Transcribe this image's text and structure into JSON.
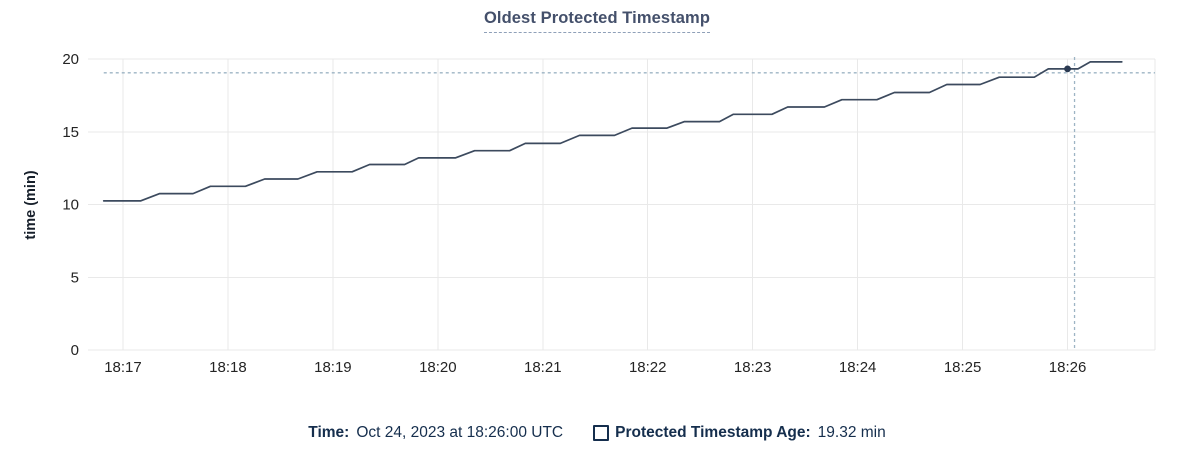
{
  "title": "Oldest Protected Timestamp",
  "y_axis_label": "time (min)",
  "tooltip": {
    "time_label": "Time:",
    "time_value": "Oct 24, 2023 at 18:26:00 UTC",
    "series_label": "Protected Timestamp Age:",
    "series_value": "19.32 min"
  },
  "colors": {
    "line": "#3c4a5e",
    "dot": "#2b3a52",
    "crosshair": "#9db4c4",
    "grid": "#e9e9e9",
    "title": "#44506b",
    "title_underline": "#8fa0b8",
    "tick_text": "#242424",
    "legend_text": "#152e4d"
  },
  "chart_data": {
    "type": "line",
    "title": "Oldest Protected Timestamp",
    "xlabel": "",
    "ylabel": "time (min)",
    "ylim": [
      0,
      20
    ],
    "y_ticks": [
      0,
      5,
      10,
      15,
      20
    ],
    "grid": true,
    "legend_position": "bottom",
    "x_domain_seconds": [
      -20,
      590
    ],
    "x_ticks": [
      {
        "label": "18:17",
        "t": 0
      },
      {
        "label": "18:18",
        "t": 60
      },
      {
        "label": "18:19",
        "t": 120
      },
      {
        "label": "18:20",
        "t": 180
      },
      {
        "label": "18:21",
        "t": 240
      },
      {
        "label": "18:22",
        "t": 300
      },
      {
        "label": "18:23",
        "t": 360
      },
      {
        "label": "18:24",
        "t": 420
      },
      {
        "label": "18:25",
        "t": 480
      },
      {
        "label": "18:26",
        "t": 540
      }
    ],
    "series": [
      {
        "name": "Protected Timestamp Age",
        "unit": "min",
        "points": [
          [
            -11,
            10.25
          ],
          [
            10,
            10.25
          ],
          [
            21,
            10.75
          ],
          [
            40,
            10.75
          ],
          [
            50,
            11.25
          ],
          [
            70,
            11.25
          ],
          [
            81,
            11.75
          ],
          [
            100,
            11.75
          ],
          [
            111,
            12.25
          ],
          [
            131,
            12.25
          ],
          [
            141,
            12.75
          ],
          [
            161,
            12.75
          ],
          [
            169,
            13.2
          ],
          [
            190,
            13.2
          ],
          [
            201,
            13.7
          ],
          [
            221,
            13.7
          ],
          [
            230,
            14.2
          ],
          [
            250,
            14.2
          ],
          [
            261,
            14.75
          ],
          [
            281,
            14.75
          ],
          [
            291,
            15.25
          ],
          [
            311,
            15.25
          ],
          [
            321,
            15.7
          ],
          [
            341,
            15.7
          ],
          [
            349,
            16.2
          ],
          [
            371,
            16.2
          ],
          [
            380,
            16.7
          ],
          [
            401,
            16.7
          ],
          [
            411,
            17.2
          ],
          [
            431,
            17.2
          ],
          [
            441,
            17.7
          ],
          [
            461,
            17.7
          ],
          [
            471,
            18.25
          ],
          [
            490,
            18.25
          ],
          [
            501,
            18.75
          ],
          [
            521,
            18.75
          ],
          [
            529,
            19.32
          ],
          [
            546,
            19.32
          ],
          [
            553,
            19.8
          ],
          [
            571,
            19.8
          ]
        ]
      }
    ],
    "highlight_point": {
      "t": 540,
      "v": 19.32,
      "time_label": "18:26:00 UTC",
      "value_label": "19.32 min"
    },
    "crosshair": {
      "t": 544,
      "v": 19.05
    }
  }
}
